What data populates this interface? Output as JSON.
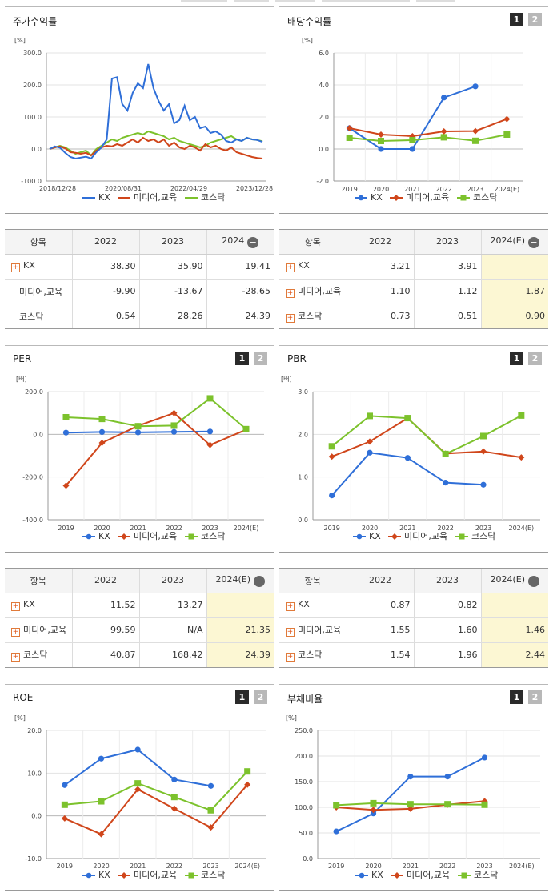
{
  "colors": {
    "kx": "#2f6fd8",
    "media": "#d0461b",
    "kosdaq": "#7cc22c"
  },
  "legend": {
    "kx": "KX",
    "media": "미디어,교육",
    "kosdaq": "코스닥"
  },
  "buttons": {
    "one": "1",
    "two": "2"
  },
  "panels": {
    "stock": {
      "title": "주가수익률",
      "unit": "[%]"
    },
    "dividend": {
      "title": "배당수익률",
      "unit": "[%]"
    },
    "per": {
      "title": "PER",
      "unit": "[배]"
    },
    "pbr": {
      "title": "PBR",
      "unit": "[배]"
    },
    "roe": {
      "title": "ROE",
      "unit": "[%]"
    },
    "debt": {
      "title": "부채비율",
      "unit": "[%]"
    }
  },
  "tables": {
    "stock": {
      "headers": [
        "항목",
        "2022",
        "2023",
        "2024"
      ],
      "rows": [
        {
          "label": "KX",
          "values": [
            "38.30",
            "35.90",
            "19.41"
          ]
        },
        {
          "label": "미디어,교육",
          "values": [
            "-9.90",
            "-13.67",
            "-28.65"
          ]
        },
        {
          "label": "코스닥",
          "values": [
            "0.54",
            "28.26",
            "24.39"
          ]
        }
      ]
    },
    "dividend": {
      "headers": [
        "항목",
        "2022",
        "2023",
        "2024(E)"
      ],
      "rows": [
        {
          "label": "KX",
          "values": [
            "3.21",
            "3.91",
            ""
          ]
        },
        {
          "label": "미디어,교육",
          "values": [
            "1.10",
            "1.12",
            "1.87"
          ]
        },
        {
          "label": "코스닥",
          "values": [
            "0.73",
            "0.51",
            "0.90"
          ]
        }
      ]
    },
    "per": {
      "headers": [
        "항목",
        "2022",
        "2023",
        "2024(E)"
      ],
      "rows": [
        {
          "label": "KX",
          "values": [
            "11.52",
            "13.27",
            ""
          ]
        },
        {
          "label": "미디어,교육",
          "values": [
            "99.59",
            "N/A",
            "21.35"
          ]
        },
        {
          "label": "코스닥",
          "values": [
            "40.87",
            "168.42",
            "24.39"
          ]
        }
      ]
    },
    "pbr": {
      "headers": [
        "항목",
        "2022",
        "2023",
        "2024(E)"
      ],
      "rows": [
        {
          "label": "KX",
          "values": [
            "0.87",
            "0.82",
            ""
          ]
        },
        {
          "label": "미디어,교육",
          "values": [
            "1.55",
            "1.60",
            "1.46"
          ]
        },
        {
          "label": "코스닥",
          "values": [
            "1.54",
            "1.96",
            "2.44"
          ]
        }
      ]
    }
  },
  "chart_data": [
    {
      "id": "stock",
      "type": "line",
      "title": "주가수익률",
      "ylabel": "[%]",
      "ylim": [
        -100,
        300
      ],
      "yticks": [
        "300.0",
        "200.0",
        "100.0",
        "0.0",
        "-100.0"
      ],
      "xticks": [
        "2018/12/28",
        "2020/08/31",
        "2022/04/29",
        "2023/12/28"
      ],
      "series": [
        {
          "name": "KX",
          "key": "kx",
          "values": [
            0,
            8,
            4,
            -12,
            -25,
            -30,
            -27,
            -24,
            -30,
            -10,
            5,
            30,
            220,
            224,
            140,
            120,
            175,
            205,
            190,
            265,
            190,
            150,
            120,
            140,
            80,
            90,
            135,
            90,
            100,
            65,
            70,
            50,
            55,
            45,
            25,
            20,
            30,
            25,
            35,
            30,
            28,
            22
          ]
        },
        {
          "name": "미디어,교육",
          "key": "media",
          "values": [
            0,
            5,
            8,
            2,
            -10,
            -12,
            -15,
            -12,
            -20,
            -5,
            5,
            10,
            8,
            15,
            10,
            20,
            30,
            20,
            35,
            25,
            30,
            20,
            30,
            10,
            20,
            5,
            0,
            10,
            5,
            -5,
            15,
            5,
            10,
            0,
            -5,
            5,
            -10,
            -15,
            -20,
            -25,
            -28,
            -30
          ]
        },
        {
          "name": "코스닥",
          "key": "kosdaq",
          "values": [
            0,
            5,
            10,
            5,
            -5,
            -15,
            -10,
            -5,
            -20,
            0,
            10,
            20,
            30,
            25,
            35,
            40,
            45,
            50,
            45,
            55,
            50,
            45,
            40,
            30,
            35,
            25,
            20,
            15,
            10,
            5,
            10,
            20,
            25,
            30,
            35,
            40,
            30,
            25,
            35,
            30,
            28,
            24
          ]
        }
      ]
    },
    {
      "id": "dividend",
      "type": "line",
      "title": "배당수익률",
      "ylabel": "[%]",
      "ylim": [
        -2,
        6
      ],
      "yticks": [
        "6.0",
        "4.0",
        "2.0",
        "0.0",
        "-2.0"
      ],
      "categories": [
        "2019",
        "2020",
        "2021",
        "2022",
        "2023",
        "2024(E)"
      ],
      "series": [
        {
          "name": "KX",
          "key": "kx",
          "values": [
            1.3,
            0,
            0,
            3.21,
            3.91,
            null
          ]
        },
        {
          "name": "미디어,교육",
          "key": "media",
          "values": [
            1.3,
            0.9,
            0.8,
            1.1,
            1.12,
            1.87
          ]
        },
        {
          "name": "코스닥",
          "key": "kosdaq",
          "values": [
            0.7,
            0.5,
            0.55,
            0.73,
            0.51,
            0.9
          ]
        }
      ]
    },
    {
      "id": "per",
      "type": "line",
      "title": "PER",
      "ylabel": "[배]",
      "ylim": [
        -400,
        200
      ],
      "yticks": [
        "200.0",
        "0.0",
        "-200.0",
        "-400.0"
      ],
      "categories": [
        "2019",
        "2020",
        "2021",
        "2022",
        "2023",
        "2024(E)"
      ],
      "series": [
        {
          "name": "KX",
          "key": "kx",
          "values": [
            8,
            11,
            9,
            11.52,
            13.27,
            null
          ]
        },
        {
          "name": "미디어,교육",
          "key": "media",
          "values": [
            -240,
            -40,
            40,
            99.59,
            -50,
            21.35
          ]
        },
        {
          "name": "코스닥",
          "key": "kosdaq",
          "values": [
            80,
            72,
            38,
            40.87,
            168.42,
            24.39
          ]
        }
      ]
    },
    {
      "id": "pbr",
      "type": "line",
      "title": "PBR",
      "ylabel": "[배]",
      "ylim": [
        0,
        3
      ],
      "yticks": [
        "3.0",
        "2.0",
        "1.0",
        "0.0"
      ],
      "categories": [
        "2019",
        "2020",
        "2021",
        "2022",
        "2023",
        "2024(E)"
      ],
      "series": [
        {
          "name": "KX",
          "key": "kx",
          "values": [
            0.57,
            1.57,
            1.45,
            0.87,
            0.82,
            null
          ]
        },
        {
          "name": "미디어,교육",
          "key": "media",
          "values": [
            1.48,
            1.83,
            2.38,
            1.55,
            1.6,
            1.46
          ]
        },
        {
          "name": "코스닥",
          "key": "kosdaq",
          "values": [
            1.72,
            2.43,
            2.38,
            1.54,
            1.96,
            2.44
          ]
        }
      ]
    },
    {
      "id": "roe",
      "type": "line",
      "title": "ROE",
      "ylabel": "[%]",
      "ylim": [
        -10,
        20
      ],
      "yticks": [
        "20.0",
        "10.0",
        "0.0",
        "-10.0"
      ],
      "categories": [
        "2019",
        "2020",
        "2021",
        "2022",
        "2023",
        "2024(E)"
      ],
      "series": [
        {
          "name": "KX",
          "key": "kx",
          "values": [
            7.2,
            13.4,
            15.5,
            8.5,
            7,
            null
          ]
        },
        {
          "name": "미디어,교육",
          "key": "media",
          "values": [
            -0.6,
            -4.3,
            6.2,
            1.7,
            -2.7,
            7.3
          ]
        },
        {
          "name": "코스닥",
          "key": "kosdaq",
          "values": [
            2.6,
            3.4,
            7.6,
            4.4,
            1.3,
            10.4
          ]
        }
      ]
    },
    {
      "id": "debt",
      "type": "line",
      "title": "부채비율",
      "ylabel": "[%]",
      "ylim": [
        0,
        250
      ],
      "yticks": [
        "250.0",
        "200.0",
        "150.0",
        "100.0",
        "50.0",
        "0.0"
      ],
      "categories": [
        "2019",
        "2020",
        "2021",
        "2022",
        "2023",
        "2024(E)"
      ],
      "series": [
        {
          "name": "KX",
          "key": "kx",
          "values": [
            53,
            88,
            160,
            160,
            197,
            null
          ]
        },
        {
          "name": "미디어,교육",
          "key": "media",
          "values": [
            100,
            95,
            97,
            105,
            112,
            null
          ]
        },
        {
          "name": "코스닥",
          "key": "kosdaq",
          "values": [
            104,
            108,
            106,
            106,
            105,
            null
          ]
        }
      ]
    }
  ]
}
